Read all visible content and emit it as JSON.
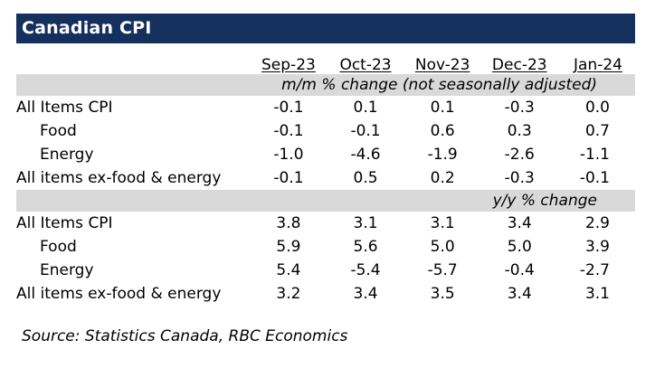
{
  "title": "Canadian CPI",
  "columns": [
    "Sep-23",
    "Oct-23",
    "Nov-23",
    "Dec-23",
    "Jan-24"
  ],
  "sections": [
    {
      "header": "m/m % change (not seasonally adjusted)",
      "rows": [
        {
          "label": "All Items CPI",
          "values": [
            "-0.1",
            "0.1",
            "0.1",
            "-0.3",
            "0.0"
          ]
        },
        {
          "label": "Food",
          "values": [
            "-0.1",
            "-0.1",
            "0.6",
            "0.3",
            "0.7"
          ]
        },
        {
          "label": "Energy",
          "values": [
            "-1.0",
            "-4.6",
            "-1.9",
            "-2.6",
            "-1.1"
          ]
        },
        {
          "label": "All items ex-food & energy",
          "values": [
            "-0.1",
            "0.5",
            "0.2",
            "-0.3",
            "-0.1"
          ]
        }
      ]
    },
    {
      "header": "y/y % change",
      "rows": [
        {
          "label": "All Items CPI",
          "values": [
            "3.8",
            "3.1",
            "3.1",
            "3.4",
            "2.9"
          ]
        },
        {
          "label": "Food",
          "values": [
            "5.9",
            "5.6",
            "5.0",
            "5.0",
            "3.9"
          ]
        },
        {
          "label": "Energy",
          "values": [
            "5.4",
            "-5.4",
            "-5.7",
            "-0.4",
            "-2.7"
          ]
        },
        {
          "label": "All items ex-food & energy",
          "values": [
            "3.2",
            "3.4",
            "3.5",
            "3.4",
            "3.1"
          ]
        }
      ]
    }
  ],
  "source": "Source:  Statistics Canada, RBC Economics",
  "colors": {
    "title_bg": "#14305c",
    "section_bg": "#d9d9d9"
  }
}
